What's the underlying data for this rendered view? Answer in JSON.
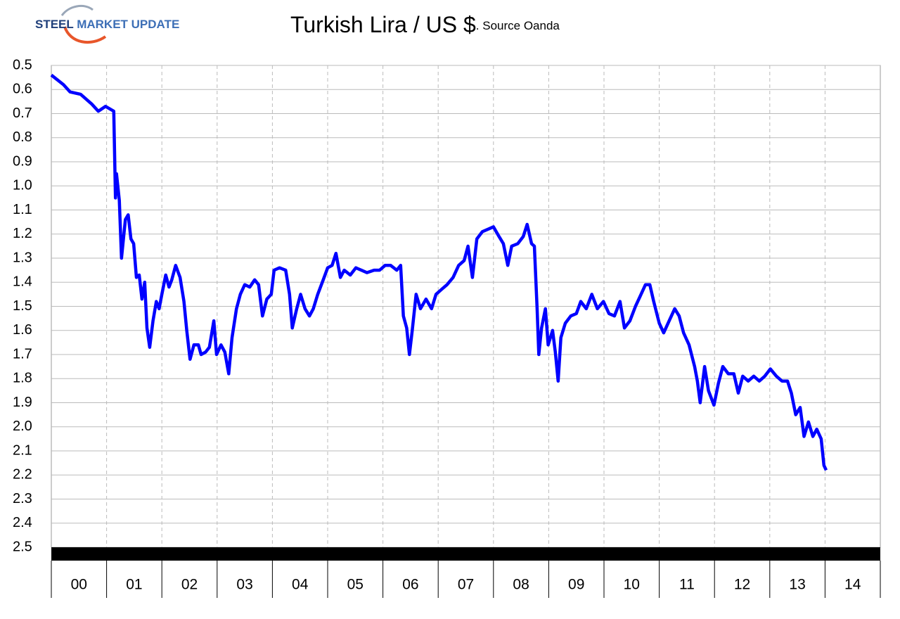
{
  "logo": {
    "primary": "STEEL",
    "secondary": "MARKET UPDATE"
  },
  "chart_data": {
    "type": "line",
    "title": "Turkish Lira / US $",
    "subtitle": ". Source Oanda",
    "y_inverted": true,
    "grid": true,
    "xlim": [
      0,
      15
    ],
    "xticks": [
      {
        "value": 0.5,
        "label": "00"
      },
      {
        "value": 1.5,
        "label": "01"
      },
      {
        "value": 2.5,
        "label": "02"
      },
      {
        "value": 3.5,
        "label": "03"
      },
      {
        "value": 4.5,
        "label": "04"
      },
      {
        "value": 5.5,
        "label": "05"
      },
      {
        "value": 6.5,
        "label": "06"
      },
      {
        "value": 7.5,
        "label": "07"
      },
      {
        "value": 8.5,
        "label": "08"
      },
      {
        "value": 9.5,
        "label": "09"
      },
      {
        "value": 10.5,
        "label": "10"
      },
      {
        "value": 11.5,
        "label": "11"
      },
      {
        "value": 12.5,
        "label": "12"
      },
      {
        "value": 13.5,
        "label": "13"
      },
      {
        "value": 14.5,
        "label": "14"
      }
    ],
    "ylim": [
      0.5,
      2.5
    ],
    "yticks": [
      0.5,
      0.6,
      0.7,
      0.8,
      0.9,
      {
        "value": 1,
        "label": "1.0"
      },
      1.1,
      1.2,
      1.3,
      1.4,
      1.5,
      1.6,
      1.7,
      1.8,
      1.9,
      {
        "value": 2,
        "label": "2.0"
      },
      2.1,
      2.2,
      2.3,
      2.4,
      2.5
    ],
    "x": [
      0,
      0.22,
      0.34,
      0.53,
      0.73,
      0.85,
      0.98,
      1.13,
      1.16,
      1.18,
      1.23,
      1.27,
      1.34,
      1.39,
      1.44,
      1.49,
      1.54,
      1.59,
      1.64,
      1.69,
      1.73,
      1.78,
      1.84,
      1.9,
      1.95,
      2.0,
      2.07,
      2.13,
      2.18,
      2.25,
      2.33,
      2.4,
      2.45,
      2.51,
      2.58,
      2.66,
      2.71,
      2.79,
      2.86,
      2.94,
      2.99,
      3.07,
      3.14,
      3.21,
      3.27,
      3.35,
      3.42,
      3.5,
      3.59,
      3.68,
      3.75,
      3.82,
      3.9,
      3.98,
      4.03,
      4.13,
      4.24,
      4.31,
      4.36,
      4.44,
      4.51,
      4.59,
      4.67,
      4.74,
      4.82,
      4.92,
      5.0,
      5.08,
      5.15,
      5.23,
      5.3,
      5.41,
      5.51,
      5.61,
      5.71,
      5.84,
      5.94,
      6.04,
      6.14,
      6.25,
      6.32,
      6.37,
      6.43,
      6.48,
      6.53,
      6.6,
      6.68,
      6.78,
      6.88,
      6.96,
      7.06,
      7.16,
      7.27,
      7.37,
      7.47,
      7.54,
      7.62,
      7.7,
      7.8,
      7.9,
      8.0,
      8.1,
      8.18,
      8.26,
      8.33,
      8.44,
      8.54,
      8.61,
      8.69,
      8.74,
      8.79,
      8.82,
      8.87,
      8.94,
      8.99,
      9.07,
      9.12,
      9.17,
      9.22,
      9.3,
      9.4,
      9.5,
      9.58,
      9.68,
      9.78,
      9.88,
      9.99,
      10.09,
      10.19,
      10.29,
      10.37,
      10.47,
      10.57,
      10.67,
      10.75,
      10.83,
      10.9,
      11.0,
      11.08,
      11.18,
      11.28,
      11.36,
      11.44,
      11.54,
      11.64,
      11.69,
      11.74,
      11.82,
      11.89,
      11.99,
      12.07,
      12.15,
      12.25,
      12.35,
      12.43,
      12.51,
      12.61,
      12.71,
      12.81,
      12.91,
      13.01,
      13.12,
      13.22,
      13.32,
      13.39,
      13.47,
      13.55,
      13.62,
      13.7,
      13.78,
      13.85,
      13.93,
      13.98,
      14.02
    ],
    "series": [
      {
        "color": "#0000ff",
        "values": [
          0.54,
          0.58,
          0.61,
          0.62,
          0.66,
          0.69,
          0.67,
          0.69,
          1.05,
          0.95,
          1.06,
          1.3,
          1.14,
          1.12,
          1.22,
          1.24,
          1.38,
          1.37,
          1.47,
          1.4,
          1.59,
          1.67,
          1.56,
          1.48,
          1.51,
          1.45,
          1.37,
          1.42,
          1.39,
          1.33,
          1.38,
          1.48,
          1.6,
          1.72,
          1.66,
          1.66,
          1.7,
          1.69,
          1.67,
          1.56,
          1.7,
          1.66,
          1.69,
          1.78,
          1.63,
          1.51,
          1.45,
          1.41,
          1.42,
          1.39,
          1.41,
          1.54,
          1.47,
          1.45,
          1.35,
          1.34,
          1.35,
          1.45,
          1.59,
          1.51,
          1.45,
          1.51,
          1.54,
          1.51,
          1.45,
          1.39,
          1.34,
          1.33,
          1.28,
          1.38,
          1.35,
          1.37,
          1.34,
          1.35,
          1.36,
          1.35,
          1.35,
          1.33,
          1.33,
          1.35,
          1.33,
          1.54,
          1.59,
          1.7,
          1.6,
          1.45,
          1.51,
          1.47,
          1.51,
          1.45,
          1.43,
          1.41,
          1.38,
          1.33,
          1.31,
          1.25,
          1.38,
          1.22,
          1.19,
          1.18,
          1.17,
          1.21,
          1.24,
          1.33,
          1.25,
          1.24,
          1.21,
          1.16,
          1.24,
          1.25,
          1.51,
          1.7,
          1.59,
          1.51,
          1.66,
          1.6,
          1.69,
          1.81,
          1.63,
          1.57,
          1.54,
          1.53,
          1.48,
          1.51,
          1.45,
          1.51,
          1.48,
          1.53,
          1.54,
          1.48,
          1.59,
          1.56,
          1.5,
          1.45,
          1.41,
          1.41,
          1.48,
          1.57,
          1.61,
          1.56,
          1.51,
          1.54,
          1.61,
          1.66,
          1.75,
          1.81,
          1.9,
          1.75,
          1.85,
          1.91,
          1.82,
          1.75,
          1.78,
          1.78,
          1.86,
          1.79,
          1.81,
          1.79,
          1.81,
          1.79,
          1.76,
          1.79,
          1.81,
          1.81,
          1.86,
          1.95,
          1.92,
          2.04,
          1.98,
          2.04,
          2.01,
          2.05,
          2.16,
          2.18
        ]
      }
    ]
  }
}
